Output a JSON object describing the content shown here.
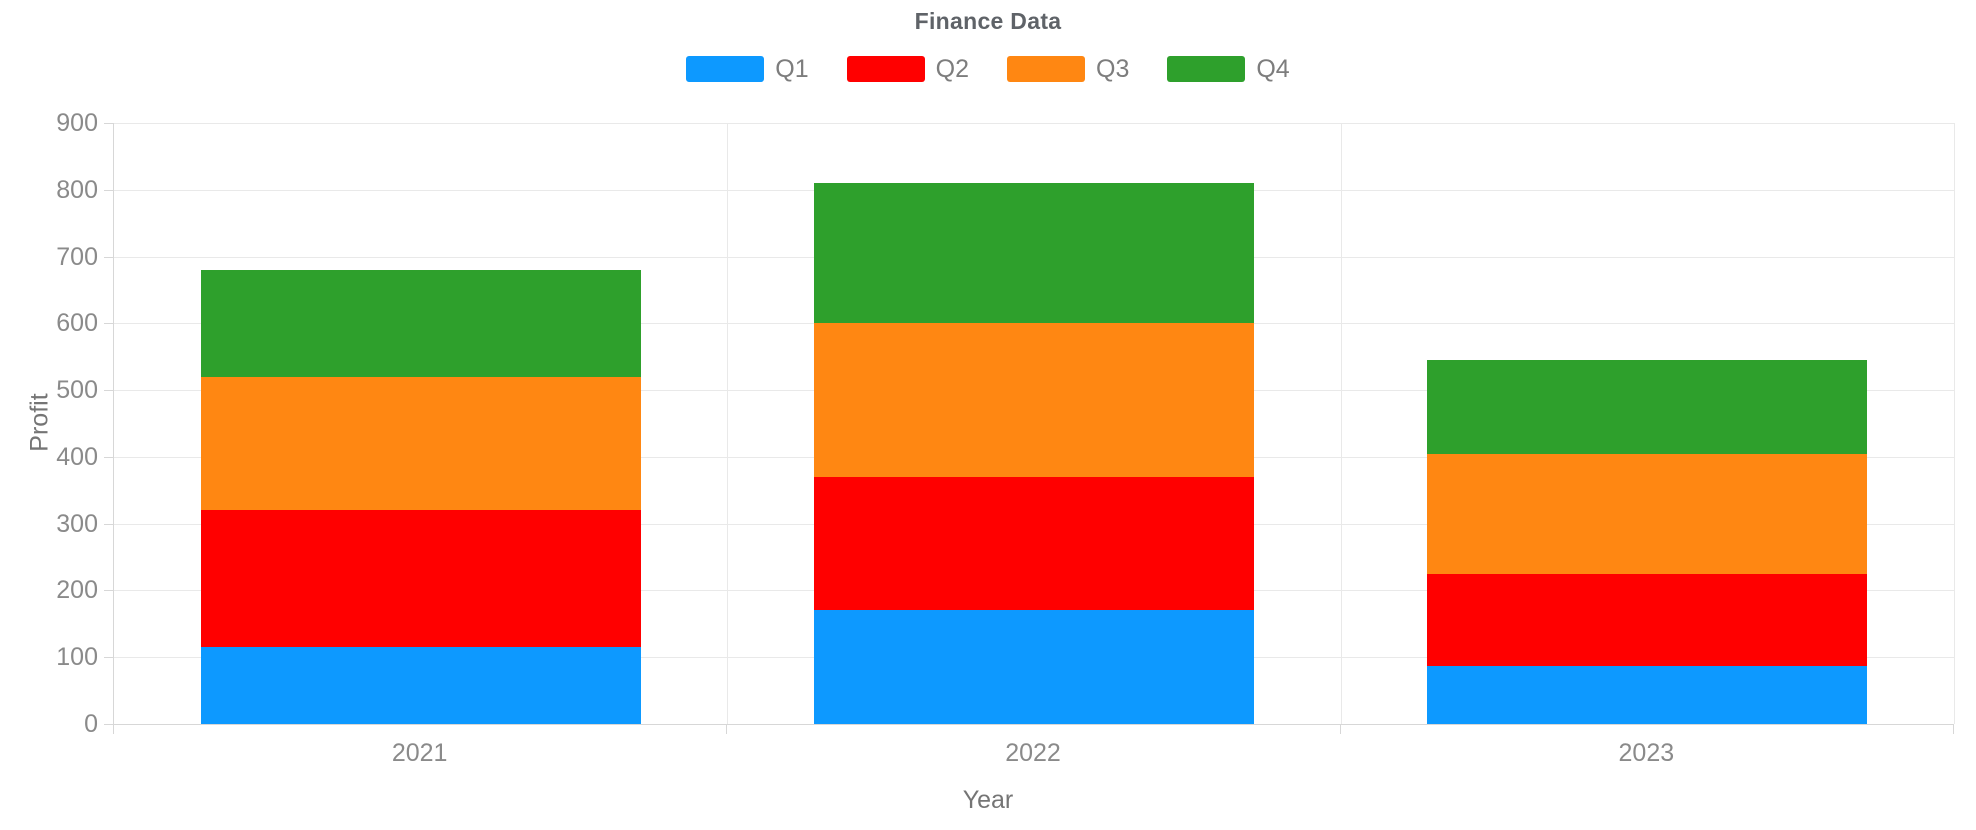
{
  "chart_data": {
    "type": "bar",
    "stacked": true,
    "title": "Finance Data",
    "xlabel": "Year",
    "ylabel": "Profit",
    "categories": [
      "2021",
      "2022",
      "2023"
    ],
    "series": [
      {
        "name": "Q1",
        "color": "#0d99ff",
        "values": [
          115,
          170,
          87
        ]
      },
      {
        "name": "Q2",
        "color": "#ff0000",
        "values": [
          205,
          200,
          138
        ]
      },
      {
        "name": "Q3",
        "color": "#ff8712",
        "values": [
          200,
          230,
          180
        ]
      },
      {
        "name": "Q4",
        "color": "#2ea02c",
        "values": [
          160,
          210,
          140
        ]
      }
    ],
    "stack_totals": [
      680,
      810,
      545
    ],
    "y_axis": {
      "min": 0,
      "max": 900,
      "step": 100,
      "tick_labels": [
        "0",
        "100",
        "200",
        "300",
        "400",
        "500",
        "600",
        "700",
        "800",
        "900"
      ]
    },
    "grid": true,
    "legend_position": "top"
  }
}
